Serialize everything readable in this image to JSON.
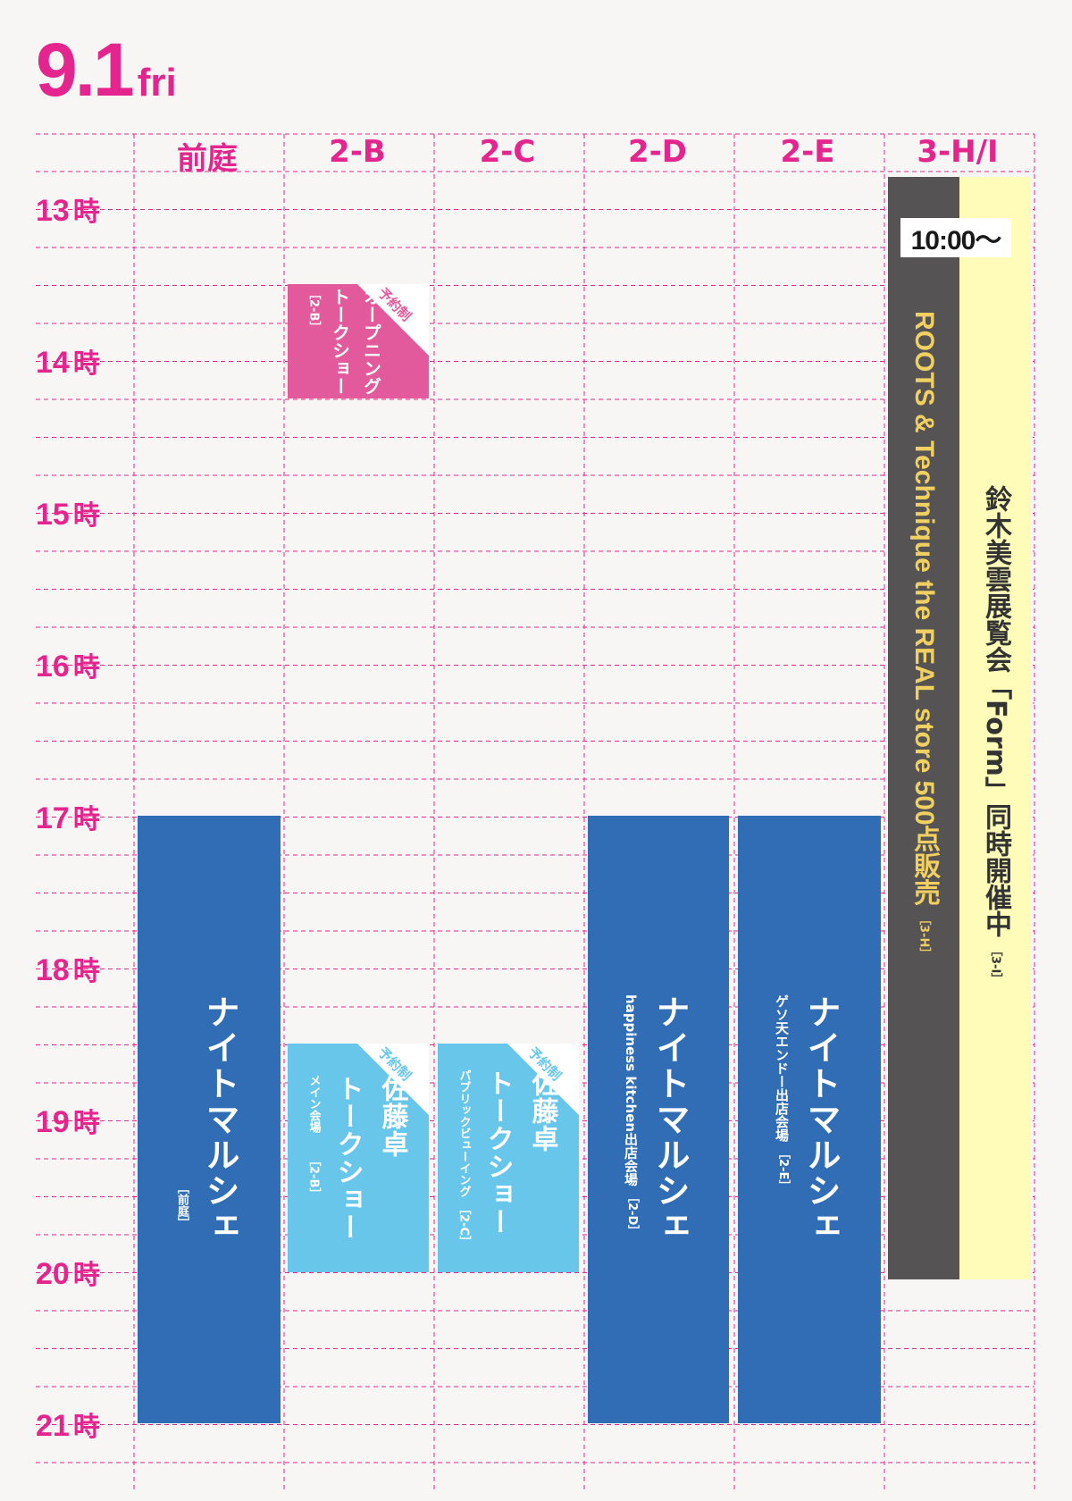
{
  "date": {
    "day": "9.1",
    "weekday": "fri"
  },
  "columns": [
    "前庭",
    "2-B",
    "2-C",
    "2-D",
    "2-E",
    "3-H/I"
  ],
  "hours": [
    "13",
    "14",
    "15",
    "16",
    "17",
    "18",
    "19",
    "20",
    "21"
  ],
  "hour_unit": "時",
  "colors": {
    "accent": "#e4258d",
    "blue": "#306db5",
    "light_blue": "#67c6ea",
    "pink": "#e25a9b",
    "dark_gray": "#555354",
    "cream": "#fffbb8",
    "gold": "#f0d060"
  },
  "events": {
    "opening": {
      "badge": "予約制",
      "title": [
        "オープニング",
        "トークショー"
      ],
      "venue": "［2-B］"
    },
    "night_front": {
      "title": "ナイトマルシェ",
      "venue": "［前庭］"
    },
    "sato_2b": {
      "badge": "予約制",
      "title": [
        "佐藤卓",
        "トークショー"
      ],
      "sub": "メイン会場",
      "venue": "［2-B］"
    },
    "sato_2c": {
      "badge": "予約制",
      "title": [
        "佐藤卓",
        "トークショー"
      ],
      "sub": "パブリックビューイング",
      "venue": "［2-C］"
    },
    "night_2d": {
      "title": "ナイトマルシェ",
      "sub": "happiness kitchen出店会場",
      "venue": "［2-D］"
    },
    "night_2e": {
      "title": "ナイトマルシェ",
      "sub": "ゲソ天エンドー出店会場",
      "venue": "［2-E］"
    },
    "roots": {
      "time": "10:00〜",
      "title": "ROOTS & Technique the REAL store 500点販売",
      "venue": "［3-H］"
    },
    "suzuki": {
      "title": "鈴木美雲展覧会「Form」同時開催中",
      "venue": "［3-I］"
    }
  }
}
